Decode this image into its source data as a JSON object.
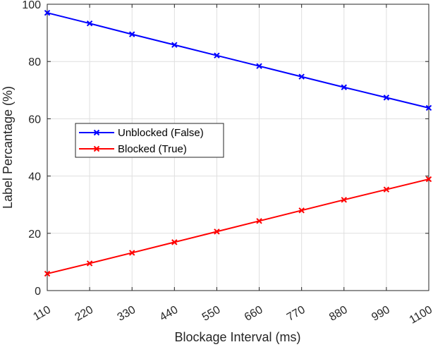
{
  "chart_data": {
    "type": "line",
    "xlabel": "Blockage Interval (ms)",
    "ylabel": "Label Percantage (%)",
    "x": [
      110,
      220,
      330,
      440,
      550,
      660,
      770,
      880,
      990,
      1100
    ],
    "xticks": [
      "110",
      "220",
      "330",
      "440",
      "550",
      "660",
      "770",
      "880",
      "990",
      "1100"
    ],
    "ylim": [
      0,
      100
    ],
    "yticks": [
      "0",
      "20",
      "40",
      "60",
      "80",
      "100"
    ],
    "grid": true,
    "legend_position": "center-left",
    "series": [
      {
        "name": "Unblocked (False)",
        "color": "#0000ff",
        "marker": "x",
        "values": [
          97.0,
          93.3,
          89.5,
          85.8,
          82.1,
          78.4,
          74.7,
          71.0,
          67.4,
          63.8
        ]
      },
      {
        "name": "Blocked (True)",
        "color": "#ff0000",
        "marker": "x",
        "values": [
          5.9,
          9.5,
          13.2,
          16.9,
          20.6,
          24.3,
          28.0,
          31.7,
          35.3,
          38.9
        ]
      }
    ]
  }
}
